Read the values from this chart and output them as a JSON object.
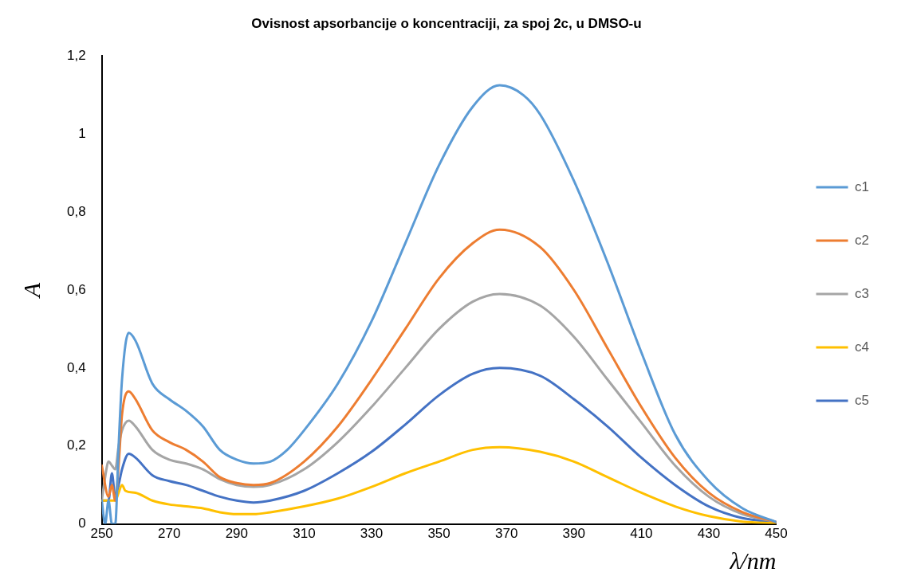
{
  "chart_data": {
    "type": "line",
    "title": "Ovisnost apsorbancije o koncentraciji, za spoj 2c, u DMSO-u",
    "xlabel": "λ/nm",
    "ylabel": "A",
    "xlim": [
      250,
      450
    ],
    "xticks": [
      250,
      270,
      290,
      310,
      330,
      350,
      370,
      390,
      410,
      430,
      450
    ],
    "ylim": [
      0,
      1.2
    ],
    "yticks": [
      {
        "value": 0,
        "label": "0"
      },
      {
        "value": 0.2,
        "label": "0,2"
      },
      {
        "value": 0.4,
        "label": "0,4"
      },
      {
        "value": 0.6,
        "label": "0,6"
      },
      {
        "value": 0.8,
        "label": "0,8"
      },
      {
        "value": 1,
        "label": "1"
      },
      {
        "value": 1.2,
        "label": "1,2"
      }
    ],
    "grid": false,
    "legend": "right",
    "marker": "none",
    "line_style": "solid",
    "series": [
      {
        "name": "c1",
        "color": "#5b9bd5",
        "x": [
          250,
          251,
          252,
          253,
          254,
          255,
          256,
          258,
          260,
          265,
          270,
          275,
          280,
          285,
          290,
          295,
          300,
          305,
          310,
          320,
          330,
          340,
          350,
          360,
          368,
          375,
          380,
          390,
          400,
          410,
          420,
          430,
          440,
          450
        ],
        "values": [
          0.06,
          0,
          0.06,
          0,
          0,
          0.2,
          0.37,
          0.49,
          0.47,
          0.36,
          0.32,
          0.29,
          0.25,
          0.19,
          0.165,
          0.155,
          0.16,
          0.19,
          0.24,
          0.36,
          0.52,
          0.72,
          0.92,
          1.07,
          1.125,
          1.1,
          1.05,
          0.88,
          0.67,
          0.44,
          0.23,
          0.11,
          0.04,
          0.005
        ]
      },
      {
        "name": "c2",
        "color": "#ed7d31",
        "x": [
          250,
          252,
          253,
          254,
          255,
          256,
          258,
          260,
          265,
          270,
          275,
          280,
          285,
          290,
          295,
          300,
          310,
          320,
          330,
          340,
          350,
          360,
          368,
          380,
          390,
          400,
          410,
          420,
          430,
          440,
          450
        ],
        "values": [
          0.15,
          0.07,
          0.1,
          0.06,
          0.15,
          0.28,
          0.34,
          0.32,
          0.24,
          0.21,
          0.19,
          0.16,
          0.12,
          0.105,
          0.1,
          0.105,
          0.16,
          0.25,
          0.37,
          0.5,
          0.63,
          0.72,
          0.755,
          0.71,
          0.6,
          0.45,
          0.3,
          0.17,
          0.08,
          0.03,
          0.005
        ]
      },
      {
        "name": "c3",
        "color": "#a5a5a5",
        "x": [
          250,
          251,
          252,
          253,
          254,
          255,
          256,
          258,
          260,
          265,
          270,
          275,
          280,
          285,
          290,
          295,
          300,
          310,
          320,
          330,
          340,
          350,
          360,
          368,
          380,
          390,
          400,
          410,
          420,
          430,
          440,
          450
        ],
        "values": [
          0.06,
          0.12,
          0.16,
          0.15,
          0.14,
          0.2,
          0.24,
          0.265,
          0.25,
          0.19,
          0.165,
          0.155,
          0.14,
          0.115,
          0.1,
          0.095,
          0.1,
          0.14,
          0.21,
          0.3,
          0.4,
          0.5,
          0.57,
          0.59,
          0.56,
          0.48,
          0.37,
          0.26,
          0.15,
          0.07,
          0.025,
          0.005
        ]
      },
      {
        "name": "c4",
        "color": "#ffc000",
        "x": [
          250,
          254,
          255,
          256,
          257,
          260,
          265,
          270,
          275,
          280,
          285,
          290,
          295,
          300,
          310,
          320,
          330,
          340,
          350,
          360,
          368,
          380,
          390,
          400,
          410,
          420,
          430,
          440,
          450
        ],
        "values": [
          0.06,
          0.06,
          0.08,
          0.1,
          0.085,
          0.08,
          0.06,
          0.05,
          0.045,
          0.04,
          0.03,
          0.025,
          0.025,
          0.03,
          0.045,
          0.065,
          0.095,
          0.13,
          0.16,
          0.19,
          0.197,
          0.185,
          0.16,
          0.12,
          0.08,
          0.045,
          0.02,
          0.006,
          0.002
        ]
      },
      {
        "name": "c5",
        "color": "#4472c4",
        "x": [
          250,
          252,
          253,
          254,
          255,
          256,
          258,
          260,
          265,
          270,
          275,
          280,
          285,
          290,
          295,
          300,
          310,
          320,
          330,
          340,
          350,
          360,
          368,
          380,
          390,
          400,
          410,
          420,
          430,
          440,
          450
        ],
        "values": [
          0.06,
          0.06,
          0.13,
          0.07,
          0.1,
          0.14,
          0.18,
          0.17,
          0.125,
          0.11,
          0.1,
          0.085,
          0.07,
          0.06,
          0.055,
          0.06,
          0.085,
          0.13,
          0.185,
          0.255,
          0.33,
          0.385,
          0.4,
          0.38,
          0.32,
          0.25,
          0.17,
          0.1,
          0.045,
          0.015,
          0.005
        ]
      }
    ]
  }
}
